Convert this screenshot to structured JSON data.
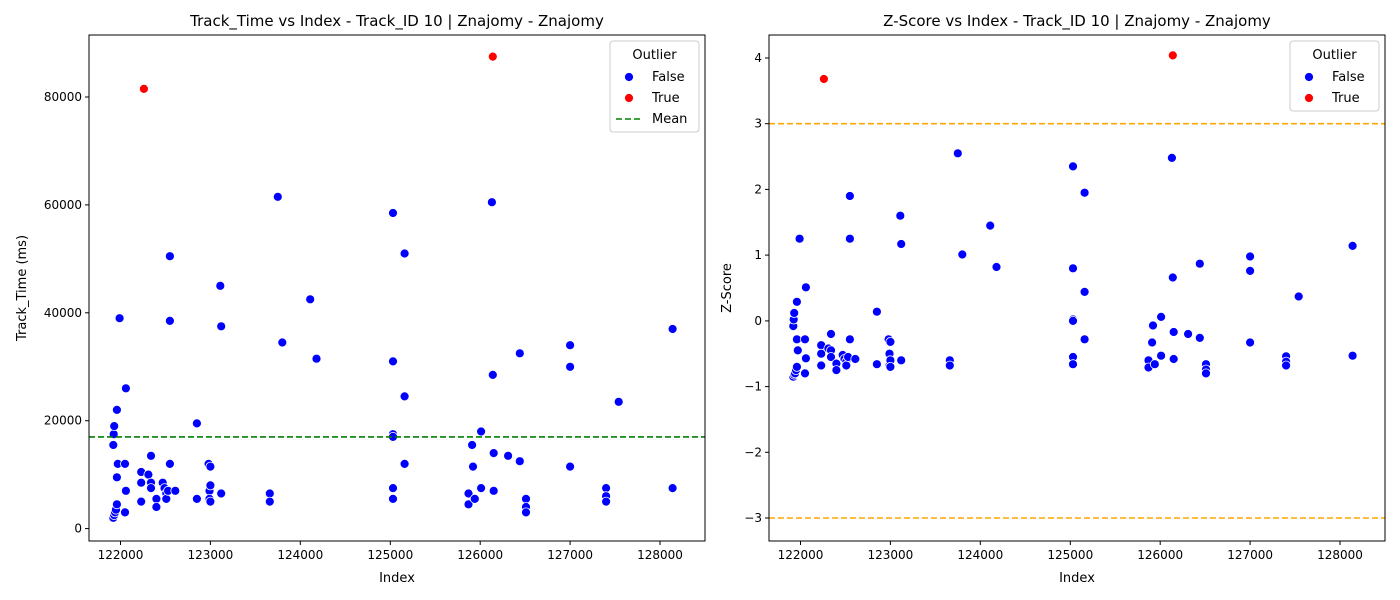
{
  "chart_data": [
    {
      "type": "scatter",
      "title": "Track_Time vs Index - Track_ID 10 | Znajomy - Znajomy",
      "xlabel": "Index",
      "ylabel": "Track_Time (ms)",
      "xlim": [
        121650,
        128500
      ],
      "ylim": [
        -2300,
        91500
      ],
      "xticks": [
        122000,
        123000,
        124000,
        125000,
        126000,
        127000,
        128000
      ],
      "yticks": [
        0,
        20000,
        40000,
        60000,
        80000
      ],
      "grid": false,
      "legend": {
        "title": "Outlier",
        "position": "top-right",
        "entries": [
          {
            "label": "False",
            "kind": "marker",
            "color": "#0000ff"
          },
          {
            "label": "True",
            "kind": "marker",
            "color": "#ff0000"
          },
          {
            "label": "Mean",
            "kind": "dashed-line",
            "color": "#008000"
          }
        ]
      },
      "reference_lines": [
        {
          "name": "Mean",
          "y": 17000,
          "color": "#008000",
          "style": "dashed"
        }
      ],
      "series": [
        {
          "name": "False",
          "color": "#0000ff",
          "points": [
            [
              121920,
              2000
            ],
            [
              121930,
              2500
            ],
            [
              121940,
              3000
            ],
            [
              121950,
              3500
            ],
            [
              121960,
              4500
            ],
            [
              121920,
              15500
            ],
            [
              121925,
              17500
            ],
            [
              121930,
              19000
            ],
            [
              121960,
              22000
            ],
            [
              121990,
              39000
            ],
            [
              121970,
              12000
            ],
            [
              121960,
              9500
            ],
            [
              122050,
              12000
            ],
            [
              122060,
              26000
            ],
            [
              122060,
              7000
            ],
            [
              122050,
              3000
            ],
            [
              122230,
              10500
            ],
            [
              122230,
              8500
            ],
            [
              122230,
              5000
            ],
            [
              122310,
              10000
            ],
            [
              122340,
              13500
            ],
            [
              122340,
              8500
            ],
            [
              122340,
              7500
            ],
            [
              122400,
              5500
            ],
            [
              122400,
              4000
            ],
            [
              122470,
              8500
            ],
            [
              122490,
              7500
            ],
            [
              122510,
              6500
            ],
            [
              122510,
              5500
            ],
            [
              122530,
              7000
            ],
            [
              122550,
              50500
            ],
            [
              122550,
              38500
            ],
            [
              122550,
              12000
            ],
            [
              122610,
              7000
            ],
            [
              122850,
              19500
            ],
            [
              122850,
              5500
            ],
            [
              122980,
              12000
            ],
            [
              122990,
              7000
            ],
            [
              122990,
              5500
            ],
            [
              123000,
              8000
            ],
            [
              123000,
              11500
            ],
            [
              123000,
              5000
            ],
            [
              123110,
              45000
            ],
            [
              123120,
              37500
            ],
            [
              123120,
              6500
            ],
            [
              123660,
              6500
            ],
            [
              123660,
              5000
            ],
            [
              123750,
              61500
            ],
            [
              123800,
              34500
            ],
            [
              124110,
              42500
            ],
            [
              124180,
              31500
            ],
            [
              125030,
              58500
            ],
            [
              125030,
              31000
            ],
            [
              125030,
              17500
            ],
            [
              125030,
              17000
            ],
            [
              125030,
              7500
            ],
            [
              125030,
              5500
            ],
            [
              125160,
              51000
            ],
            [
              125160,
              24500
            ],
            [
              125160,
              12000
            ],
            [
              125870,
              6500
            ],
            [
              125870,
              4500
            ],
            [
              125910,
              15500
            ],
            [
              125920,
              11500
            ],
            [
              125940,
              5500
            ],
            [
              126010,
              18000
            ],
            [
              126010,
              7500
            ],
            [
              126130,
              60500
            ],
            [
              126140,
              28500
            ],
            [
              126150,
              14000
            ],
            [
              126150,
              7000
            ],
            [
              126310,
              13500
            ],
            [
              126440,
              32500
            ],
            [
              126440,
              12500
            ],
            [
              126510,
              5500
            ],
            [
              126510,
              4000
            ],
            [
              126510,
              3000
            ],
            [
              127000,
              34000
            ],
            [
              127000,
              30000
            ],
            [
              127000,
              11500
            ],
            [
              127400,
              7500
            ],
            [
              127400,
              6000
            ],
            [
              127400,
              5000
            ],
            [
              127540,
              23500
            ],
            [
              128140,
              37000
            ],
            [
              128140,
              7500
            ]
          ]
        },
        {
          "name": "True",
          "color": "#ff0000",
          "points": [
            [
              122260,
              81500
            ],
            [
              126140,
              87500
            ]
          ]
        }
      ]
    },
    {
      "type": "scatter",
      "title": "Z-Score vs Index - Track_ID 10 | Znajomy - Znajomy",
      "xlabel": "Index",
      "ylabel": "Z-Score",
      "xlim": [
        121650,
        128500
      ],
      "ylim": [
        -3.35,
        4.35
      ],
      "xticks": [
        122000,
        123000,
        124000,
        125000,
        126000,
        127000,
        128000
      ],
      "yticks": [
        -3,
        -2,
        -1,
        0,
        1,
        2,
        3,
        4
      ],
      "grid": false,
      "legend": {
        "title": "Outlier",
        "position": "top-right",
        "entries": [
          {
            "label": "False",
            "kind": "marker",
            "color": "#0000ff"
          },
          {
            "label": "True",
            "kind": "marker",
            "color": "#ff0000"
          }
        ]
      },
      "reference_lines": [
        {
          "y": 3,
          "color": "#ffa500",
          "style": "dashed"
        },
        {
          "y": -3,
          "color": "#ffa500",
          "style": "dashed"
        }
      ],
      "series": [
        {
          "name": "False",
          "color": "#0000ff",
          "points": [
            [
              121920,
              -0.85
            ],
            [
              121930,
              -0.82
            ],
            [
              121940,
              -0.8
            ],
            [
              121950,
              -0.75
            ],
            [
              121960,
              -0.7
            ],
            [
              121920,
              -0.08
            ],
            [
              121925,
              0.02
            ],
            [
              121930,
              0.12
            ],
            [
              121960,
              0.29
            ],
            [
              121990,
              1.25
            ],
            [
              121970,
              -0.45
            ],
            [
              121960,
              -0.28
            ],
            [
              122050,
              -0.28
            ],
            [
              122060,
              0.51
            ],
            [
              122060,
              -0.57
            ],
            [
              122050,
              -0.8
            ],
            [
              122230,
              -0.37
            ],
            [
              122230,
              -0.5
            ],
            [
              122230,
              -0.68
            ],
            [
              122310,
              -0.42
            ],
            [
              122340,
              -0.2
            ],
            [
              122340,
              -0.45
            ],
            [
              122340,
              -0.55
            ],
            [
              122400,
              -0.65
            ],
            [
              122400,
              -0.75
            ],
            [
              122470,
              -0.52
            ],
            [
              122490,
              -0.58
            ],
            [
              122510,
              -0.62
            ],
            [
              122510,
              -0.68
            ],
            [
              122530,
              -0.55
            ],
            [
              122550,
              1.9
            ],
            [
              122550,
              1.25
            ],
            [
              122550,
              -0.28
            ],
            [
              122610,
              -0.58
            ],
            [
              122850,
              0.14
            ],
            [
              122850,
              -0.66
            ],
            [
              122980,
              -0.28
            ],
            [
              122990,
              -0.5
            ],
            [
              122990,
              -0.68
            ],
            [
              123000,
              -0.6
            ],
            [
              123000,
              -0.32
            ],
            [
              123000,
              -0.7
            ],
            [
              123110,
              1.6
            ],
            [
              123120,
              1.17
            ],
            [
              123120,
              -0.6
            ],
            [
              123660,
              -0.6
            ],
            [
              123660,
              -0.68
            ],
            [
              123750,
              2.55
            ],
            [
              123800,
              1.01
            ],
            [
              124110,
              1.45
            ],
            [
              124180,
              0.82
            ],
            [
              125030,
              2.35
            ],
            [
              125030,
              0.8
            ],
            [
              125030,
              0.02
            ],
            [
              125030,
              0.0
            ],
            [
              125030,
              -0.55
            ],
            [
              125030,
              -0.66
            ],
            [
              125160,
              1.95
            ],
            [
              125160,
              0.44
            ],
            [
              125160,
              -0.28
            ],
            [
              125870,
              -0.6
            ],
            [
              125870,
              -0.71
            ],
            [
              125910,
              -0.33
            ],
            [
              125920,
              -0.07
            ],
            [
              125940,
              -0.66
            ],
            [
              126010,
              0.06
            ],
            [
              126010,
              -0.53
            ],
            [
              126130,
              2.48
            ],
            [
              126140,
              0.66
            ],
            [
              126150,
              -0.17
            ],
            [
              126150,
              -0.58
            ],
            [
              126310,
              -0.2
            ],
            [
              126440,
              0.87
            ],
            [
              126440,
              -0.26
            ],
            [
              126510,
              -0.66
            ],
            [
              126510,
              -0.74
            ],
            [
              126510,
              -0.8
            ],
            [
              127000,
              0.98
            ],
            [
              127000,
              0.76
            ],
            [
              127000,
              -0.33
            ],
            [
              127400,
              -0.54
            ],
            [
              127400,
              -0.62
            ],
            [
              127400,
              -0.68
            ],
            [
              127540,
              0.37
            ],
            [
              128140,
              1.14
            ],
            [
              128140,
              -0.53
            ]
          ]
        },
        {
          "name": "True",
          "color": "#ff0000",
          "points": [
            [
              122260,
              3.68
            ],
            [
              126140,
              4.04
            ]
          ]
        }
      ]
    }
  ]
}
